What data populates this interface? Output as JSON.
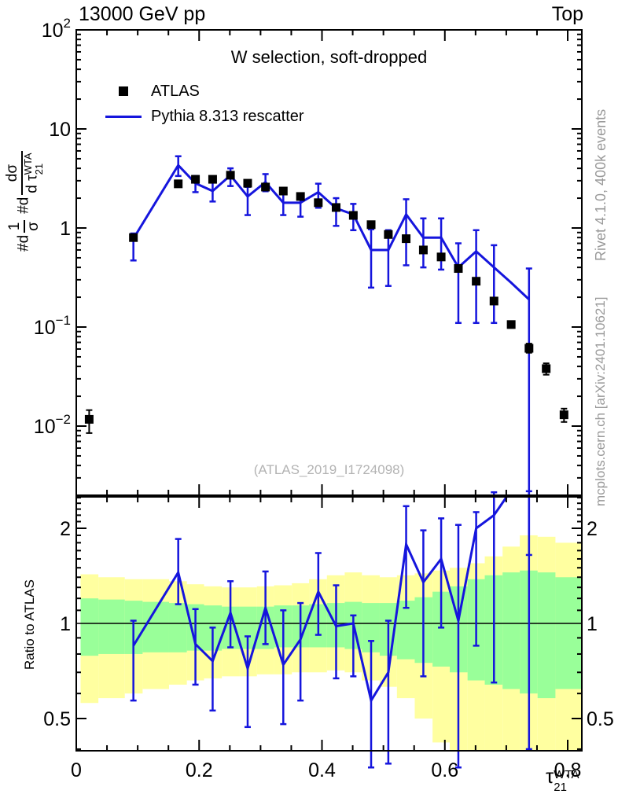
{
  "header": {
    "left": "13000 GeV pp",
    "right": "Top"
  },
  "plot": {
    "title": "W selection, soft-dropped",
    "watermark": "(ATLAS_2019_I1724098)"
  },
  "side_notes": {
    "right_top": "Rivet 4.1.0,  400k events",
    "right_bottom": "mcplots.cern.ch [arXiv:2401.10621]"
  },
  "legend": {
    "items": [
      {
        "label": "ATLAS",
        "marker": "black-square"
      },
      {
        "label": "Pythia 8.313 rescatter",
        "marker": "blue-line"
      }
    ]
  },
  "axis_labels": {
    "ratio": "Ratio to ATLAS",
    "x_base": "τ",
    "x_sub": "21",
    "x_sup": "WTA",
    "y_prefix": "#d",
    "y_frac1_num": "1",
    "y_frac1_den": "σ",
    "y_frac2_num": "dσ",
    "y_frac2_den_d": "d",
    "y_tau": "τ"
  },
  "colors": {
    "pythia": "#1515dd",
    "atlas": "#000000",
    "band_inner": "#99ff99",
    "band_outer": "#ffffa0",
    "reference_line": "#000000",
    "credits": "#999999",
    "watermark": "#b3b3b3"
  },
  "chart_data": {
    "type": "line",
    "layout": "two-panel: main distribution (log y) + ratio panel (log y)",
    "title": "W selection, soft-dropped",
    "xlabel": "tau_21^WTA",
    "xlim": [
      0,
      0.823
    ],
    "x": [
      0.021,
      0.093,
      0.166,
      0.194,
      0.222,
      0.251,
      0.279,
      0.308,
      0.337,
      0.365,
      0.394,
      0.423,
      0.451,
      0.48,
      0.508,
      0.537,
      0.565,
      0.594,
      0.622,
      0.651,
      0.68,
      0.708,
      0.737,
      0.765,
      0.794
    ],
    "main": {
      "ylog": true,
      "ylim": [
        0.002,
        100
      ],
      "ylabel": "#d(1/σ) #d dσ/d τ21^WTA",
      "yticks_labeled": [
        {
          "v": 100,
          "base": "10",
          "exp": "2"
        },
        {
          "v": 10,
          "base": "10",
          "exp": ""
        },
        {
          "v": 1,
          "base": "1",
          "exp": ""
        },
        {
          "v": 0.1,
          "base": "10",
          "exp": "−1"
        },
        {
          "v": 0.01,
          "base": "10",
          "exp": "−2"
        }
      ],
      "xticks": [
        {
          "v": 0,
          "t": "0"
        },
        {
          "v": 0.2,
          "t": "0.2"
        },
        {
          "v": 0.4,
          "t": "0.4"
        },
        {
          "v": 0.6,
          "t": "0.6"
        },
        {
          "v": 0.8,
          "t": "0.8"
        }
      ],
      "xtick_minor_step": 0.05,
      "series": [
        {
          "name": "ATLAS",
          "type": "scatter",
          "marker": "filled-square",
          "color": "#000000",
          "y": [
            0.0117,
            0.8,
            2.79,
            3.1,
            3.1,
            3.41,
            2.83,
            2.59,
            2.36,
            2.08,
            1.8,
            1.61,
            1.34,
            1.08,
            0.86,
            0.78,
            0.6,
            0.51,
            0.39,
            0.29,
            0.183,
            0.106,
            0.061,
            0.038,
            0.013
          ],
          "err_lo": [
            0.0085,
            0.75,
            2.65,
            2.95,
            2.95,
            3.25,
            2.7,
            2.47,
            2.25,
            1.98,
            1.71,
            1.53,
            1.27,
            1.02,
            0.81,
            0.73,
            0.56,
            0.48,
            0.36,
            0.27,
            0.17,
            0.098,
            0.055,
            0.033,
            0.011
          ],
          "err_hi": [
            0.0145,
            0.85,
            2.93,
            3.26,
            3.26,
            3.58,
            2.97,
            2.72,
            2.48,
            2.18,
            1.89,
            1.69,
            1.41,
            1.14,
            0.91,
            0.83,
            0.64,
            0.54,
            0.42,
            0.31,
            0.196,
            0.114,
            0.068,
            0.043,
            0.015
          ]
        },
        {
          "name": "Pythia 8.313 rescatter",
          "type": "line",
          "color": "#1515dd",
          "y": [
            null,
            0.78,
            4.3,
            2.83,
            2.36,
            3.4,
            2.08,
            2.9,
            1.8,
            1.8,
            2.3,
            1.58,
            1.37,
            0.6,
            0.6,
            1.37,
            0.8,
            0.8,
            0.4,
            0.58,
            0.4,
            0.28,
            0.19,
            null,
            null
          ],
          "err_lo": [
            null,
            0.47,
            3.35,
            2.3,
            1.85,
            2.65,
            1.35,
            2.35,
            1.35,
            1.3,
            1.6,
            1.05,
            0.95,
            0.25,
            0.26,
            0.42,
            0.4,
            0.38,
            0.11,
            0.11,
            0.11,
            null,
            0.0005,
            null,
            null
          ],
          "err_hi": [
            null,
            0.88,
            5.3,
            3.35,
            2.9,
            4.0,
            2.6,
            3.5,
            2.3,
            2.2,
            2.8,
            2.0,
            1.75,
            0.97,
            0.95,
            1.95,
            1.25,
            1.25,
            0.7,
            0.95,
            0.67,
            null,
            0.39,
            null,
            null
          ]
        }
      ]
    },
    "ratio": {
      "name": "Pythia 8.313 rescatter / ATLAS",
      "ylog": true,
      "ylim": [
        0.395,
        2.51
      ],
      "reference_line": 1,
      "y": [
        null,
        0.85,
        1.45,
        0.86,
        0.76,
        1.08,
        0.72,
        1.12,
        0.74,
        0.89,
        1.26,
        0.98,
        1.0,
        0.57,
        0.7,
        1.78,
        1.35,
        1.6,
        1.02,
        2.0,
        2.2,
        2.64,
        3.1,
        null,
        null
      ],
      "err_lo": [
        null,
        0.57,
        1.15,
        0.64,
        0.53,
        0.84,
        0.47,
        0.86,
        0.48,
        0.57,
        0.92,
        0.67,
        0.68,
        0.35,
        0.36,
        1.12,
        0.68,
        0.97,
        0.35,
        0.85,
        0.65,
        null,
        0.4,
        null,
        null
      ],
      "err_hi": [
        null,
        1.02,
        1.85,
        1.11,
        0.97,
        1.36,
        0.91,
        1.46,
        1.1,
        1.16,
        1.67,
        1.32,
        1.06,
        0.88,
        1.02,
        2.35,
        1.97,
        2.15,
        2.05,
        2.25,
        2.6,
        null,
        2.62,
        null,
        null
      ],
      "yticks_labeled": [
        {
          "v": 2,
          "t": "2"
        },
        {
          "v": 1,
          "t": "1"
        },
        {
          "v": 0.5,
          "t": "0.5"
        }
      ],
      "bands": {
        "inner_color": "#99ff99",
        "outer_color": "#ffffa0",
        "segments": [
          [
            0.007,
            0.036,
            0.56,
            1.43,
            0.79,
            1.2
          ],
          [
            0.036,
            0.079,
            0.58,
            1.4,
            0.8,
            1.19
          ],
          [
            0.079,
            0.108,
            0.6,
            1.38,
            0.8,
            1.18
          ],
          [
            0.108,
            0.151,
            0.62,
            1.38,
            0.81,
            1.17
          ],
          [
            0.151,
            0.18,
            0.64,
            1.36,
            0.81,
            1.16
          ],
          [
            0.18,
            0.208,
            0.66,
            1.33,
            0.82,
            1.15
          ],
          [
            0.208,
            0.237,
            0.67,
            1.31,
            0.82,
            1.14
          ],
          [
            0.237,
            0.265,
            0.68,
            1.3,
            0.83,
            1.13
          ],
          [
            0.265,
            0.294,
            0.68,
            1.3,
            0.83,
            1.13
          ],
          [
            0.294,
            0.322,
            0.69,
            1.31,
            0.83,
            1.13
          ],
          [
            0.322,
            0.351,
            0.69,
            1.32,
            0.84,
            1.14
          ],
          [
            0.351,
            0.379,
            0.7,
            1.34,
            0.84,
            1.14
          ],
          [
            0.379,
            0.408,
            0.7,
            1.38,
            0.84,
            1.15
          ],
          [
            0.408,
            0.437,
            0.71,
            1.42,
            0.84,
            1.16
          ],
          [
            0.437,
            0.465,
            0.7,
            1.45,
            0.83,
            1.17
          ],
          [
            0.465,
            0.494,
            0.66,
            1.42,
            0.81,
            1.16
          ],
          [
            0.494,
            0.522,
            0.63,
            1.4,
            0.79,
            1.16
          ],
          [
            0.522,
            0.551,
            0.58,
            1.42,
            0.77,
            1.18
          ],
          [
            0.551,
            0.58,
            0.5,
            1.44,
            0.75,
            1.21
          ],
          [
            0.58,
            0.608,
            0.42,
            1.47,
            0.73,
            1.26
          ],
          [
            0.608,
            0.637,
            0.3,
            1.5,
            0.7,
            1.31
          ],
          [
            0.637,
            0.665,
            0.3,
            1.55,
            0.66,
            1.38
          ],
          [
            0.665,
            0.694,
            0.3,
            1.63,
            0.64,
            1.42
          ],
          [
            0.694,
            0.722,
            0.3,
            1.75,
            0.62,
            1.45
          ],
          [
            0.722,
            0.751,
            0.3,
            1.9,
            0.6,
            1.47
          ],
          [
            0.751,
            0.78,
            0.3,
            1.88,
            0.58,
            1.45
          ],
          [
            0.78,
            0.823,
            0.3,
            1.8,
            0.62,
            1.4
          ]
        ]
      }
    }
  }
}
